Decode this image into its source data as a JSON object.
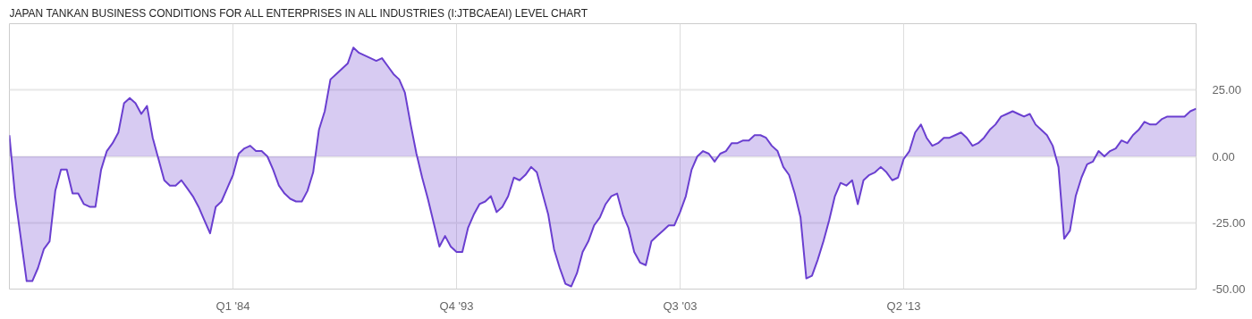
{
  "chart_data": {
    "type": "area",
    "title": "JAPAN TANKAN BUSINESS CONDITIONS FOR ALL ENTERPRISES IN ALL INDUSTRIES (I:JTBCAEAI) LEVEL CHART",
    "x": [
      "1974-04",
      "1974-07",
      "1974-10",
      "1975-01",
      "1975-04",
      "1975-07",
      "1975-10",
      "1976-01",
      "1976-04",
      "1976-07",
      "1976-10",
      "1977-01",
      "1977-04",
      "1977-07",
      "1977-10",
      "1978-01",
      "1978-04",
      "1978-07",
      "1978-10",
      "1979-01",
      "1979-04",
      "1979-07",
      "1979-10",
      "1980-01",
      "1980-04",
      "1980-07",
      "1980-10",
      "1981-01",
      "1981-04",
      "1981-07",
      "1981-10",
      "1982-01",
      "1982-04",
      "1982-07",
      "1982-10",
      "1983-01",
      "1983-04",
      "1983-07",
      "1983-10",
      "1984-01",
      "1984-04",
      "1984-07",
      "1984-10",
      "1985-01",
      "1985-04",
      "1985-07",
      "1985-10",
      "1986-01",
      "1986-04",
      "1986-07",
      "1986-10",
      "1987-01",
      "1987-04",
      "1987-07",
      "1987-10",
      "1988-01",
      "1988-04",
      "1988-07",
      "1988-10",
      "1989-01",
      "1989-04",
      "1989-07",
      "1989-10",
      "1990-01",
      "1990-04",
      "1990-07",
      "1990-10",
      "1991-01",
      "1991-04",
      "1991-07",
      "1991-10",
      "1992-01",
      "1992-04",
      "1992-07",
      "1992-10",
      "1993-01",
      "1993-04",
      "1993-07",
      "1993-10",
      "1994-01",
      "1994-04",
      "1994-07",
      "1994-10",
      "1995-01",
      "1995-04",
      "1995-07",
      "1995-10",
      "1996-01",
      "1996-04",
      "1996-07",
      "1996-10",
      "1997-01",
      "1997-04",
      "1997-07",
      "1997-10",
      "1998-01",
      "1998-04",
      "1998-07",
      "1998-10",
      "1999-01",
      "1999-04",
      "1999-07",
      "1999-10",
      "2000-01",
      "2000-04",
      "2000-07",
      "2000-10",
      "2001-01",
      "2001-04",
      "2001-07",
      "2001-10",
      "2002-01",
      "2002-04",
      "2002-07",
      "2002-10",
      "2003-01",
      "2003-04",
      "2003-07",
      "2003-10",
      "2004-01",
      "2004-04",
      "2004-07",
      "2004-10",
      "2005-01",
      "2005-04",
      "2005-07",
      "2005-10",
      "2006-01",
      "2006-04",
      "2006-07",
      "2006-10",
      "2007-01",
      "2007-04",
      "2007-07",
      "2007-10",
      "2008-01",
      "2008-04",
      "2008-07",
      "2008-10",
      "2009-01",
      "2009-04",
      "2009-07",
      "2009-10",
      "2010-01",
      "2010-04",
      "2010-07",
      "2010-10",
      "2011-01",
      "2011-04",
      "2011-07",
      "2011-10",
      "2012-01",
      "2012-04",
      "2012-07",
      "2012-10",
      "2013-01",
      "2013-04",
      "2013-07",
      "2013-10",
      "2014-01",
      "2014-04",
      "2014-07",
      "2014-10",
      "2015-01",
      "2015-04",
      "2015-07",
      "2015-10",
      "2016-01",
      "2016-04",
      "2016-07",
      "2016-10",
      "2017-01",
      "2017-04",
      "2017-07",
      "2017-10",
      "2018-01",
      "2018-04",
      "2018-07",
      "2018-10",
      "2019-01",
      "2019-04",
      "2019-07",
      "2019-10",
      "2020-01",
      "2020-04",
      "2020-07",
      "2020-10",
      "2021-01",
      "2021-04",
      "2021-07",
      "2021-10",
      "2022-01",
      "2022-04",
      "2022-07",
      "2022-10",
      "2023-01",
      "2023-04",
      "2023-07",
      "2023-10",
      "2024-01",
      "2024-04",
      "2024-07",
      "2024-10",
      "2025-01",
      "2025-04",
      "2025-07",
      "2025-10",
      "2026-01"
    ],
    "series": [
      {
        "color": "#6a3fd0",
        "values": [
          8,
          -15,
          -31,
          -47,
          -47,
          -42,
          -35,
          -32,
          -13,
          -5,
          -5,
          -14,
          -14,
          -18,
          -19,
          -19,
          -5,
          2,
          5,
          9,
          20,
          22,
          20,
          16,
          19,
          7,
          -1,
          -9,
          -11,
          -11,
          -9,
          -12,
          -15,
          -19,
          -24,
          -29,
          -19,
          -17,
          -12,
          -7,
          1,
          3,
          4,
          2,
          2,
          0,
          -5,
          -11,
          -14,
          -16,
          -17,
          -17,
          -13,
          -6,
          10,
          17,
          29,
          31,
          33,
          35,
          41,
          39,
          38,
          37,
          36,
          37,
          34,
          31,
          29,
          24,
          12,
          1,
          -8,
          -16,
          -25,
          -34,
          -30,
          -34,
          -36,
          -36,
          -27,
          -22,
          -18,
          -17,
          -15,
          -21,
          -19,
          -15,
          -8,
          -9,
          -7,
          -4,
          -6,
          -14,
          -22,
          -35,
          -42,
          -48,
          -49,
          -44,
          -36,
          -32,
          -26,
          -23,
          -18,
          -15,
          -14,
          -22,
          -27,
          -36,
          -40,
          -41,
          -32,
          -30,
          -28,
          -26,
          -26,
          -21,
          -15,
          -5,
          0,
          2,
          1,
          -2,
          1,
          2,
          5,
          5,
          6,
          6,
          8,
          8,
          7,
          4,
          2,
          -4,
          -7,
          -14,
          -23,
          -46,
          -45,
          -39,
          -32,
          -24,
          -15,
          -10,
          -11,
          -9,
          -18,
          -9,
          -7,
          -6,
          -4,
          -6,
          -9,
          -8,
          -1,
          2,
          9,
          12,
          7,
          4,
          5,
          7,
          7,
          8,
          9,
          7,
          4,
          5,
          7,
          10,
          12,
          15,
          16,
          17,
          16,
          15,
          16,
          12,
          10,
          8,
          4,
          -4,
          -31,
          -28,
          -15,
          -8,
          -3,
          -2,
          2,
          0,
          2,
          3,
          6,
          5,
          8,
          10,
          13,
          12,
          12,
          14,
          15,
          15,
          15,
          15,
          17,
          18
        ]
      }
    ],
    "xlim": [
      "1974-04",
      "2026-01"
    ],
    "xticks": [
      {
        "value": "1984-01",
        "label": "Q1 '84"
      },
      {
        "value": "1993-10",
        "label": "Q4 '93"
      },
      {
        "value": "2003-07",
        "label": "Q3 '03"
      },
      {
        "value": "2013-04",
        "label": "Q2 '13"
      }
    ],
    "ylim": [
      -50,
      50
    ],
    "yticks": [
      {
        "value": -50,
        "label": "-50.00"
      },
      {
        "value": -25,
        "label": "-25.00"
      },
      {
        "value": 0,
        "label": "0.00"
      },
      {
        "value": 25,
        "label": "25.00"
      }
    ],
    "grid": true
  }
}
